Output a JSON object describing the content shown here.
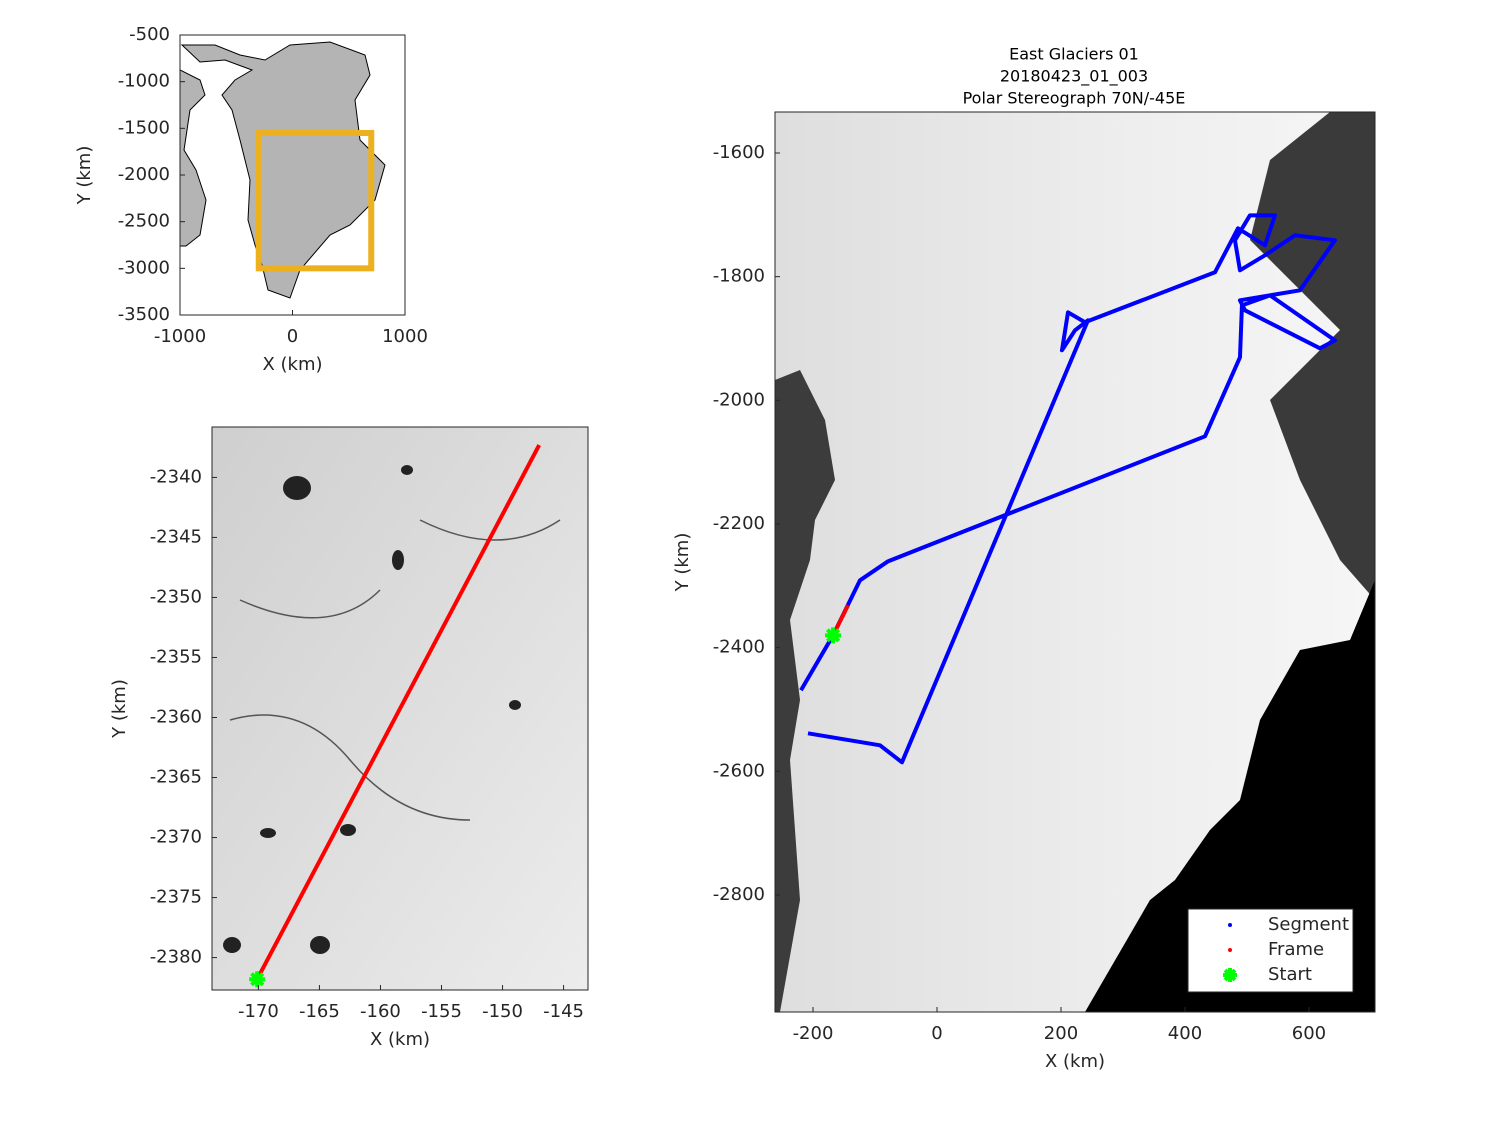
{
  "chart_data": [
    {
      "type": "map",
      "xlabel": "X (km)",
      "ylabel": "Y (km)",
      "xlim": [
        -1000,
        1000
      ],
      "ylim": [
        -3500,
        -500
      ],
      "xticks": [
        -1000,
        0,
        1000
      ],
      "yticks": [
        -500,
        -1000,
        -1500,
        -2000,
        -2500,
        -3000,
        -3500
      ],
      "region": {
        "color": "#edb120",
        "x": [
          -300,
          700
        ],
        "y": [
          -1550,
          -3000
        ]
      }
    },
    {
      "type": "map",
      "xlabel": "X (km)",
      "ylabel": "Y (km)",
      "xlim": [
        -173.8,
        -143.0
      ],
      "ylim": [
        -2382.7,
        -2335.8
      ],
      "xticks": [
        -170,
        -165,
        -160,
        -155,
        -150,
        -145
      ],
      "yticks": [
        -2340,
        -2345,
        -2350,
        -2355,
        -2360,
        -2365,
        -2370,
        -2375,
        -2380
      ],
      "series": [
        {
          "color": "#ff0000",
          "x": [
            -170.1,
            -147.0
          ],
          "y": [
            -2381.8,
            -2337.3
          ]
        },
        {
          "color": "#00ff00",
          "x": [
            -170.1
          ],
          "y": [
            -2381.8
          ]
        }
      ]
    },
    {
      "type": "map",
      "title": [
        "East Glaciers 01",
        "20180423_01_003",
        "Polar Stereograph 70N/-45E"
      ],
      "xlabel": "X (km)",
      "ylabel": "Y (km)",
      "xlim": [
        -261.3,
        706.5
      ],
      "ylim": [
        -2989.3,
        -1533.7
      ],
      "xticks": [
        -200,
        0,
        200,
        400,
        600
      ],
      "yticks": [
        -1600,
        -1800,
        -2000,
        -2200,
        -2400,
        -2600,
        -2800
      ],
      "legend": "lower right",
      "series": [
        {
          "name": "Segment",
          "color": "#0000ff",
          "x": [
            -219.4,
            -167.7,
            -124.2,
            -79.0,
            432.3,
            488.7,
            491.9,
            537.1,
            641.9,
            617.7,
            496.8,
            488.7,
            585.5,
            641.9,
            577.4,
            529.0,
            488.7,
            480.6,
            504.8,
            545.2,
            529.0,
            485.5,
            448.4,
            238.7,
            211.3,
            201.6,
            222.6,
            243.5,
            -56.5,
            -91.9,
            -208.1
          ],
          "y": [
            -2469.0,
            -2380.1,
            -2291.1,
            -2260.4,
            -2058.2,
            -1930.5,
            -1846.4,
            -1830.2,
            -1903.0,
            -1915.9,
            -1854.4,
            -1838.3,
            -1822.1,
            -1741.2,
            -1733.1,
            -1765.5,
            -1789.7,
            -1741.2,
            -1700.8,
            -1700.8,
            -1749.3,
            -1721.8,
            -1792.9,
            -1873.8,
            -1857.7,
            -1919.1,
            -1886.8,
            -1870.6,
            -2585.5,
            -2558.0,
            -2538.6
          ]
        },
        {
          "name": "Frame",
          "color": "#ff0000",
          "x": [
            -167.7,
            -143.5
          ],
          "y": [
            -2380.1,
            -2331.6
          ]
        },
        {
          "name": "Start",
          "color": "#00ff00",
          "x": [
            -167.7
          ],
          "y": [
            -2380.1
          ]
        }
      ]
    }
  ]
}
